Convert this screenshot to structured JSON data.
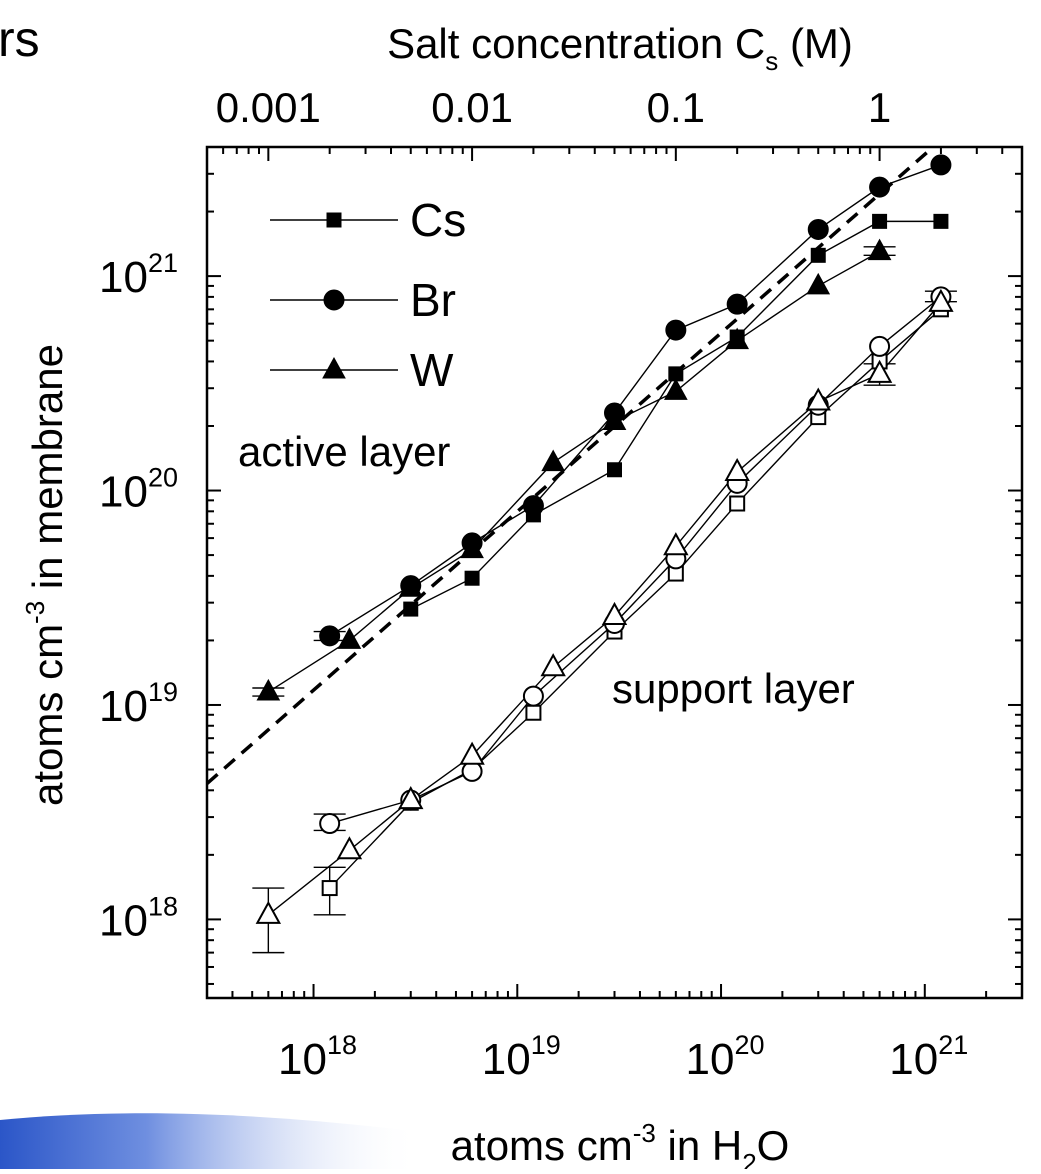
{
  "slide": {
    "title_fragment": "rs"
  },
  "chart_data": {
    "type": "scatter",
    "x_axis": {
      "scale": "log",
      "range": [
        3e+17,
        3e+21
      ],
      "label_prefix": "atoms cm",
      "label_exponent": "-3",
      "label_suffix_a": " in H",
      "label_subscript": "2",
      "label_suffix_b": "O",
      "tick_values": [
        1e+18,
        1e+19,
        1e+20,
        1e+21
      ],
      "tick_labels": [
        {
          "base": "10",
          "exp": "18"
        },
        {
          "base": "10",
          "exp": "19"
        },
        {
          "base": "10",
          "exp": "20"
        },
        {
          "base": "10",
          "exp": "21"
        }
      ]
    },
    "top_axis": {
      "scale": "log",
      "label_main": "Salt concentration C",
      "label_subscript": "s",
      "label_unit": " (M)",
      "tick_values": [
        0.001,
        0.01,
        0.1,
        1
      ],
      "tick_labels": [
        "0.001",
        "0.01",
        "0.1",
        "1"
      ],
      "range": [
        0.0005,
        5
      ]
    },
    "y_axis": {
      "scale": "log",
      "range": [
        4.3e+17,
        4e+21
      ],
      "label_prefix": "atoms cm",
      "label_exponent": "-3",
      "label_suffix": " in membrane",
      "tick_values": [
        1e+18,
        1e+19,
        1e+20,
        1e+21
      ],
      "tick_labels": [
        {
          "base": "10",
          "exp": "18"
        },
        {
          "base": "10",
          "exp": "19"
        },
        {
          "base": "10",
          "exp": "20"
        },
        {
          "base": "10",
          "exp": "21"
        }
      ]
    },
    "legend": {
      "placement": "top-left",
      "entries": [
        {
          "name": "Cs",
          "marker": "square"
        },
        {
          "name": "Br",
          "marker": "circle"
        },
        {
          "name": "W",
          "marker": "triangle"
        }
      ]
    },
    "annotations": [
      {
        "text": "active layer"
      },
      {
        "text": "support layer"
      }
    ],
    "fit_line": {
      "style": "dashed",
      "points": [
        [
          3e+17,
          4.3e+18
        ],
        [
          1.1e+21,
          4e+21
        ]
      ]
    },
    "series": [
      {
        "name": "Cs",
        "layer": "active",
        "marker": "square",
        "filled": true,
        "x": [
          3e+18,
          6e+18,
          1.2e+19,
          3e+19,
          6e+19,
          1.2e+20,
          3e+20,
          6e+20,
          1.2e+21
        ],
        "y": [
          2.8e+19,
          3.9e+19,
          7.7e+19,
          1.25e+20,
          3.5e+20,
          5.2e+20,
          1.25e+21,
          1.8e+21,
          1.8e+21
        ]
      },
      {
        "name": "Br",
        "layer": "active",
        "marker": "circle",
        "filled": true,
        "x": [
          1.2e+18,
          3e+18,
          6e+18,
          1.2e+19,
          3e+19,
          6e+19,
          1.2e+20,
          3e+20,
          6e+20,
          1.2e+21
        ],
        "y": [
          2.1e+19,
          3.6e+19,
          5.7e+19,
          8.5e+19,
          2.3e+20,
          5.6e+20,
          7.4e+20,
          1.65e+21,
          2.6e+21,
          3.3e+21
        ]
      },
      {
        "name": "W",
        "layer": "active",
        "marker": "triangle",
        "filled": true,
        "x": [
          6e+17,
          1.5e+18,
          3e+18,
          6e+18,
          1.5e+19,
          3e+19,
          6e+19,
          1.2e+20,
          3e+20,
          6e+20
        ],
        "y": [
          1.15e+19,
          2e+19,
          3.5e+19,
          5.3e+19,
          1.35e+20,
          2.1e+20,
          2.9e+20,
          5e+20,
          9e+20,
          1.3e+21
        ]
      },
      {
        "name": "Cs",
        "layer": "support",
        "marker": "square",
        "filled": false,
        "x": [
          1.2e+18,
          3e+18,
          6e+18,
          1.2e+19,
          3e+19,
          6e+19,
          1.2e+20,
          3e+20,
          6e+20,
          1.2e+21
        ],
        "y": [
          1.4e+18,
          3.5e+18,
          5e+18,
          9.2e+18,
          2.2e+19,
          4.1e+19,
          8.7e+19,
          2.2e+20,
          4e+20,
          7e+20
        ]
      },
      {
        "name": "Br",
        "layer": "support",
        "marker": "circle",
        "filled": false,
        "x": [
          1.2e+18,
          3e+18,
          6e+18,
          1.2e+19,
          3e+19,
          6e+19,
          1.2e+20,
          3e+20,
          6e+20,
          1.2e+21
        ],
        "y": [
          2.8e+18,
          3.6e+18,
          4.9e+18,
          1.1e+19,
          2.4e+19,
          4.8e+19,
          1.08e+20,
          2.5e+20,
          4.7e+20,
          8e+20
        ]
      },
      {
        "name": "W",
        "layer": "support",
        "marker": "triangle",
        "filled": false,
        "x": [
          6e+17,
          1.5e+18,
          3e+18,
          6e+18,
          1.5e+19,
          3e+19,
          6e+19,
          1.2e+20,
          3e+20,
          6e+20,
          1.2e+21
        ],
        "y": [
          1.05e+18,
          2.1e+18,
          3.6e+18,
          5.8e+18,
          1.5e+19,
          2.6e+19,
          5.5e+19,
          1.22e+20,
          2.6e+20,
          3.5e+20,
          7.5e+20
        ]
      }
    ],
    "error_bars": [
      {
        "x": 6e+17,
        "y_low": 7e+17,
        "y_high": 1.4e+18
      },
      {
        "x": 1.2e+18,
        "y_low": 1.05e+18,
        "y_high": 1.75e+18
      },
      {
        "x": 1.2e+18,
        "y_low": 2.6e+18,
        "y_high": 3.1e+18
      },
      {
        "x": 6e+17,
        "y_low": 1.1e+19,
        "y_high": 1.2e+19
      },
      {
        "x": 1.2e+18,
        "y_low": 2e+19,
        "y_high": 2.2e+19
      },
      {
        "x": 6e+20,
        "y_low": 3.1e+20,
        "y_high": 3.9e+20
      },
      {
        "x": 6e+20,
        "y_low": 1.25e+21,
        "y_high": 1.37e+21
      },
      {
        "x": 1.2e+21,
        "y_low": 7.6e+20,
        "y_high": 8.5e+20
      }
    ]
  }
}
